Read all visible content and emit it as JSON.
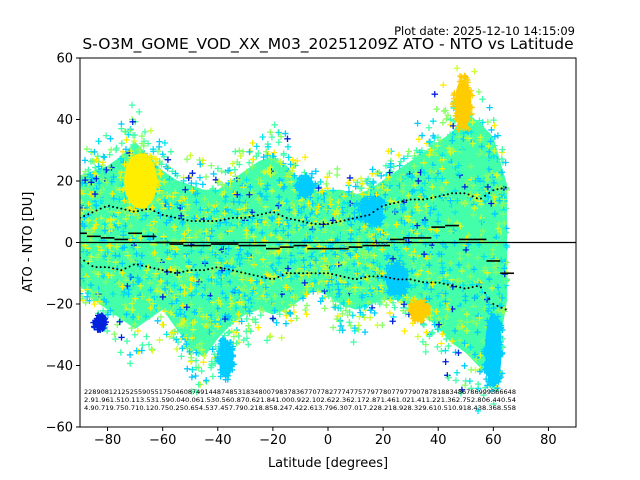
{
  "chart_data": {
    "type": "scatter",
    "plot_date": "Plot date: 2025-12-10 14:15:09",
    "title": "S-O3M_GOME_VOD_XX_M03_20251209Z ATO - NTO vs Latitude",
    "xlabel": "Latitude [degrees]",
    "ylabel": "ATO - NTO [DU]",
    "xlim": [
      -90,
      90
    ],
    "ylim": [
      -60,
      60
    ],
    "xticks": [
      -80,
      -60,
      -40,
      -20,
      0,
      20,
      40,
      60,
      80
    ],
    "yticks": [
      -60,
      -40,
      -20,
      0,
      20,
      40,
      60
    ],
    "zero_line": 0,
    "colors": {
      "blue": "#0022dd",
      "cyan": "#00ccff",
      "aqua": "#00e5ee",
      "mint": "#44ffaa",
      "lime": "#88ff66",
      "yellowgreen": "#ccff33",
      "yellow": "#ffee00",
      "gold": "#ffcc00"
    },
    "envelope": {
      "lat": [
        -90,
        -85,
        -80,
        -75,
        -70,
        -65,
        -60,
        -55,
        -50,
        -45,
        -40,
        -35,
        -30,
        -25,
        -20,
        -15,
        -10,
        -5,
        0,
        5,
        10,
        15,
        20,
        25,
        30,
        35,
        40,
        45,
        50,
        55,
        60,
        65
      ],
      "upper": [
        28,
        30,
        32,
        36,
        42,
        36,
        30,
        26,
        24,
        22,
        22,
        26,
        30,
        34,
        36,
        32,
        26,
        22,
        22,
        22,
        20,
        22,
        26,
        30,
        34,
        38,
        42,
        46,
        54,
        50,
        44,
        24
      ],
      "lower": [
        -18,
        -24,
        -28,
        -32,
        -36,
        -32,
        -28,
        -36,
        -44,
        -48,
        -40,
        -34,
        -30,
        -28,
        -30,
        -28,
        -24,
        -20,
        -22,
        -26,
        -28,
        -26,
        -24,
        -24,
        -26,
        -30,
        -36,
        -42,
        -46,
        -52,
        -58,
        -24
      ]
    },
    "mean_series": {
      "lat": [
        -90,
        -85,
        -80,
        -75,
        -70,
        -65,
        -60,
        -55,
        -50,
        -45,
        -40,
        -35,
        -30,
        -25,
        -20,
        -15,
        -10,
        -5,
        0,
        5,
        10,
        15,
        20,
        25,
        30,
        35,
        40,
        45,
        50,
        55,
        60,
        65
      ],
      "values": [
        3,
        2,
        1.5,
        1,
        3,
        2,
        0,
        -0.5,
        -1,
        -1,
        -0.5,
        -0.5,
        -1,
        -1,
        -2,
        -1.5,
        -1,
        -2,
        -2,
        -2,
        -1.5,
        -1,
        -1,
        1,
        1.5,
        1.5,
        5,
        5.5,
        1,
        1,
        -6,
        -10
      ]
    },
    "std_upper": {
      "lat": [
        -90,
        -85,
        -80,
        -75,
        -70,
        -65,
        -60,
        -55,
        -50,
        -45,
        -40,
        -35,
        -30,
        -25,
        -20,
        -15,
        -10,
        -5,
        0,
        5,
        10,
        15,
        20,
        25,
        30,
        35,
        40,
        45,
        50,
        55,
        60,
        65
      ],
      "values": [
        8,
        10,
        12,
        11,
        10,
        11,
        9,
        8,
        7,
        7,
        7,
        8,
        8,
        9,
        10,
        8,
        7,
        6,
        6,
        7,
        8,
        9,
        12,
        13,
        14,
        14,
        15,
        16,
        16,
        14,
        17,
        18
      ]
    },
    "std_lower": {
      "lat": [
        -90,
        -85,
        -80,
        -75,
        -70,
        -65,
        -60,
        -55,
        -50,
        -45,
        -40,
        -35,
        -30,
        -25,
        -20,
        -15,
        -10,
        -5,
        0,
        5,
        10,
        15,
        20,
        25,
        30,
        35,
        40,
        45,
        50,
        55,
        60,
        65
      ],
      "values": [
        -5,
        -8,
        -8,
        -9,
        -7,
        -8,
        -9,
        -10,
        -9,
        -9,
        -8,
        -9,
        -10,
        -11,
        -12,
        -10,
        -10,
        -10,
        -10,
        -11,
        -12,
        -11,
        -11,
        -12,
        -12,
        -13,
        -13,
        -14,
        -15,
        -14,
        -20,
        -22
      ]
    },
    "blobs": [
      {
        "lat": -68,
        "val": 20,
        "rlat": 6,
        "rval": 9,
        "color": "yellow"
      },
      {
        "lat": 49,
        "val": 45,
        "rlat": 3,
        "rval": 8,
        "color": "gold"
      },
      {
        "lat": -37,
        "val": -38,
        "rlat": 2.5,
        "rval": 6,
        "color": "cyan"
      },
      {
        "lat": -83,
        "val": -26,
        "rlat": 2,
        "rval": 2,
        "color": "blue"
      },
      {
        "lat": 16,
        "val": 10,
        "rlat": 4,
        "rval": 4,
        "color": "cyan"
      },
      {
        "lat": -8,
        "val": 18,
        "rlat": 3,
        "rval": 3,
        "color": "cyan"
      },
      {
        "lat": 60,
        "val": -35,
        "rlat": 3,
        "rval": 12,
        "color": "cyan"
      },
      {
        "lat": 25,
        "val": -12,
        "rlat": 4,
        "rval": 5,
        "color": "cyan"
      },
      {
        "lat": 33,
        "val": -22,
        "rlat": 3,
        "rval": 3,
        "color": "gold"
      }
    ],
    "stats_rows": [
      "22890812125255905517504608749144874853183480079837836770778277747757797780779779078781883486786999366648",
      "2.91.961.510.113.531.590.040.061.530.560.870.621.841.000.922.102.622.362.172.871.461.021.411.221.362.752.806.440.54",
      "4.90.719.750.710.120.750.250.654.537.457.790.218.858.247.422.613.796.307.017.228.218.928.329.610.510.918.438.368.558"
    ]
  }
}
